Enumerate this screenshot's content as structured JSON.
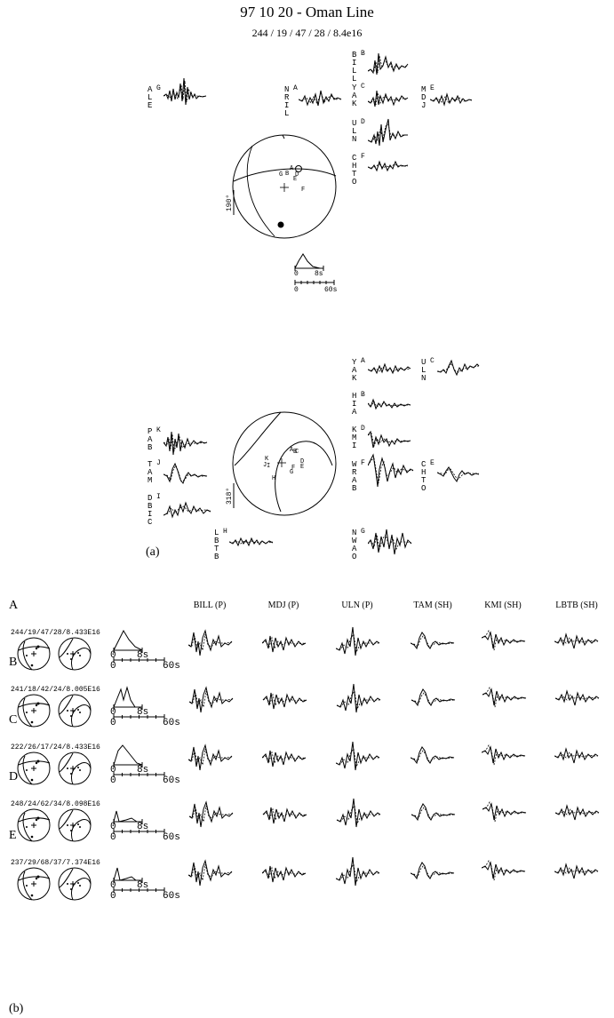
{
  "title": "97 10 20 - Oman Line",
  "subtitle": "244 / 19 / 47 / 28 / 8.4e16",
  "panel_a_label": "(a)",
  "panel_b_label": "(b)",
  "top_stations": {
    "ale": {
      "name": "ALE",
      "letter": "G"
    },
    "nril": {
      "name": "NRIL",
      "letter": "A"
    },
    "bill": {
      "name": "BILL",
      "letter": "B"
    },
    "yak": {
      "name": "YAK",
      "letter": "C"
    },
    "mdj": {
      "name": "MDJ",
      "letter": "E"
    },
    "uln": {
      "name": "ULN",
      "letter": "D"
    },
    "chto": {
      "name": "CHTO",
      "letter": "F"
    }
  },
  "top_scale": "190°",
  "top_stf": {
    "label_8s": "8s",
    "label_60s": "60s",
    "label_0a": "0",
    "label_0b": "0"
  },
  "bottom_stations": {
    "yak": {
      "name": "YAK",
      "letter": "A"
    },
    "uln": {
      "name": "ULN",
      "letter": "C"
    },
    "hia": {
      "name": "HIA",
      "letter": "B"
    },
    "kmi": {
      "name": "KMI",
      "letter": "D"
    },
    "pab": {
      "name": "PAB",
      "letter": "K"
    },
    "tam": {
      "name": "TAM",
      "letter": "J"
    },
    "dbic": {
      "name": "DBIC",
      "letter": "I"
    },
    "wrab": {
      "name": "WRAB",
      "letter": "F"
    },
    "chto": {
      "name": "CHTO",
      "letter": "E"
    },
    "lbtb": {
      "name": "LBTB",
      "letter": "H"
    },
    "nwao": {
      "name": "NWAO",
      "letter": "G"
    }
  },
  "bottom_scale": "318°",
  "columns": [
    "BILL (P)",
    "MDJ (P)",
    "ULN (P)",
    "TAM (SH)",
    "KMI (SH)",
    "LBTB (SH)"
  ],
  "rows": [
    {
      "label": "A",
      "mech": "244/19/47/28/8.433E16"
    },
    {
      "label": "B",
      "mech": "241/18/42/24/8.005E16"
    },
    {
      "label": "C",
      "mech": "222/26/17/24/8.433E16"
    },
    {
      "label": "D",
      "mech": "248/24/62/34/8.098E16"
    },
    {
      "label": "E",
      "mech": "237/29/68/37/7.374E16"
    }
  ],
  "stf_labels": {
    "s8": "8s",
    "s60": "60s",
    "zero": "0"
  }
}
